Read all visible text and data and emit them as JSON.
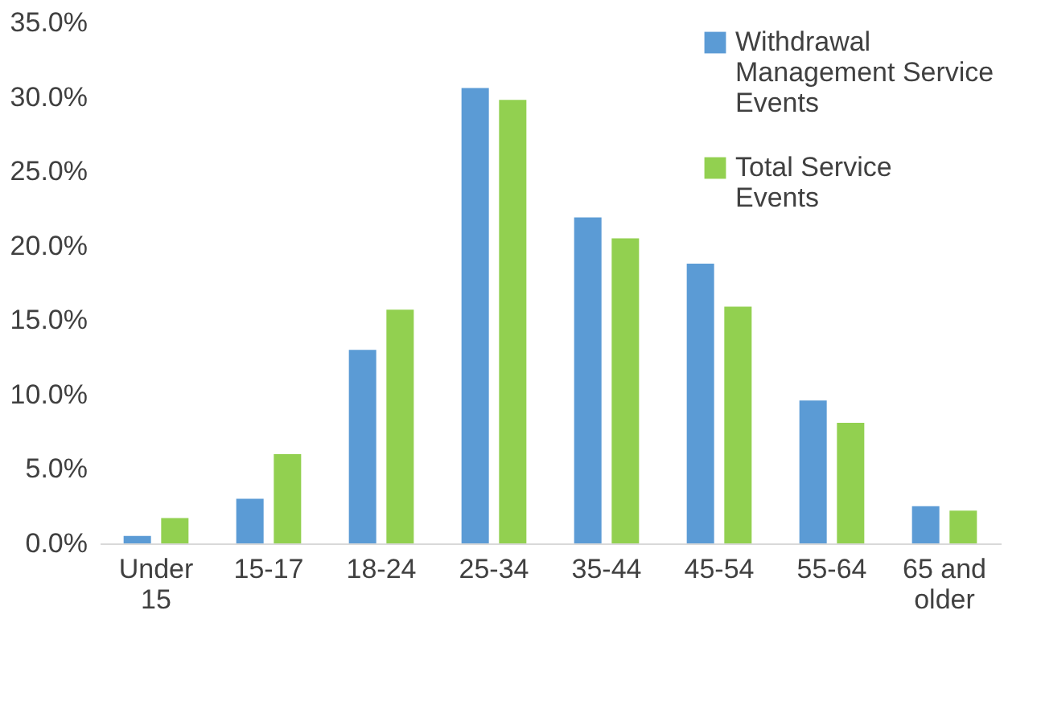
{
  "chart_data": {
    "type": "bar",
    "categories": [
      "Under 15",
      "15-17",
      "18-24",
      "25-34",
      "35-44",
      "45-54",
      "55-64",
      "65 and older"
    ],
    "series": [
      {
        "name": "Withdrawal Management Service Events",
        "color": "#5b9bd5",
        "values": [
          0.5,
          3.0,
          13.0,
          30.6,
          21.9,
          18.8,
          9.6,
          2.5
        ]
      },
      {
        "name": "Total Service Events",
        "color": "#92d050",
        "values": [
          1.7,
          6.0,
          15.7,
          29.8,
          20.5,
          15.9,
          8.1,
          2.2
        ]
      }
    ],
    "ylim": [
      0,
      35
    ],
    "yticks": [
      {
        "value": 0,
        "label": "0.0%"
      },
      {
        "value": 5,
        "label": "5.0%"
      },
      {
        "value": 10,
        "label": "10.0%"
      },
      {
        "value": 15,
        "label": "15.0%"
      },
      {
        "value": 20,
        "label": "20.0%"
      },
      {
        "value": 25,
        "label": "25.0%"
      },
      {
        "value": 30,
        "label": "30.0%"
      },
      {
        "value": 35,
        "label": "35.0%"
      }
    ],
    "grid": false,
    "legend": "top right"
  }
}
